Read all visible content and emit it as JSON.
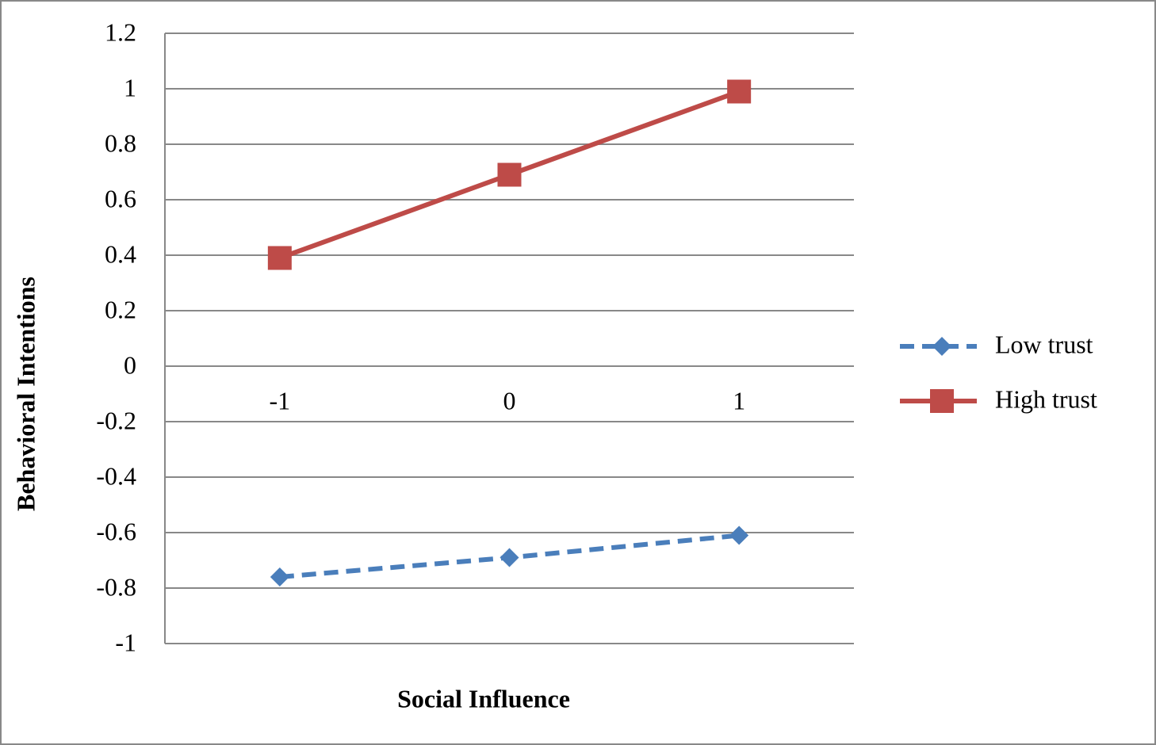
{
  "chart_data": {
    "type": "line",
    "x_label": "Social Influence",
    "y_label": "Behavioral Intentions",
    "categories": [
      "-1",
      "0",
      "1"
    ],
    "series": [
      {
        "name": "Low trust",
        "color": "#4a7ebb",
        "line_style": "dashed",
        "marker": "diamond",
        "values": [
          -0.76,
          -0.69,
          -0.61
        ]
      },
      {
        "name": "High trust",
        "color": "#be4b48",
        "line_style": "solid",
        "marker": "square",
        "values": [
          0.39,
          0.69,
          0.99
        ]
      }
    ],
    "ylim": [
      -1,
      1.2
    ],
    "yticks": [
      -1,
      -0.8,
      -0.6,
      -0.4,
      -0.2,
      0,
      0.2,
      0.4,
      0.6,
      0.8,
      1,
      1.2
    ],
    "grid": true,
    "legend": "right"
  }
}
